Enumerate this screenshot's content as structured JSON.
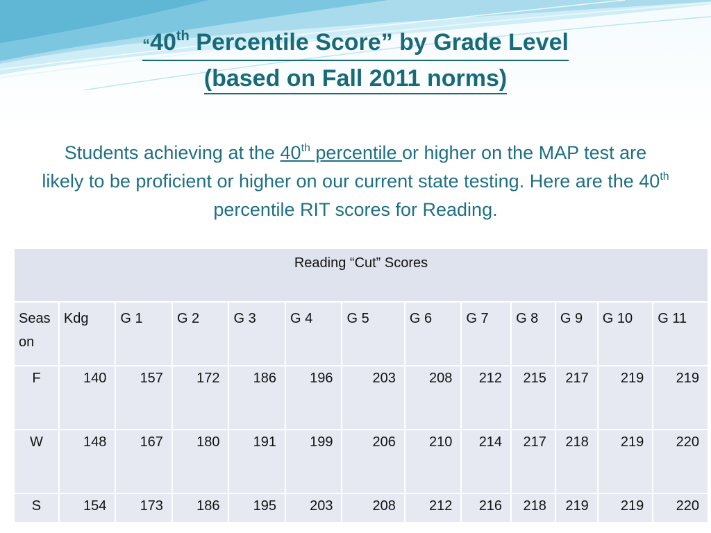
{
  "slide": {
    "title": {
      "open_quote": "“",
      "line1_num": "40",
      "line1_sup": "th",
      "line1_rest": " Percentile Score” by Grade Level",
      "line2": "(based on Fall 2011 norms)"
    },
    "subtitle": {
      "part1": "Students achieving at the ",
      "link_num": "40",
      "link_sup": "th",
      "link_rest": " percentile ",
      "part2": "or higher on the MAP test are likely to be proficient  or higher on our current state testing.  Here are the 40",
      "part2_sup": "th",
      "part3": " percentile RIT scores for Reading."
    }
  },
  "table": {
    "caption": "Reading “Cut” Scores",
    "headers": [
      "Season",
      "Kdg",
      "G 1",
      "G 2",
      "G 3",
      "G 4",
      "G 5",
      "G 6",
      "G 7",
      "G 8",
      "G 9",
      "G 10",
      "G 11"
    ],
    "header_season_top": "Seas",
    "header_season_bottom": "on",
    "rows": [
      {
        "season": "F",
        "values": [
          "140",
          "157",
          "172",
          "186",
          "196",
          "203",
          "208",
          "212",
          "215",
          "217",
          "219",
          "219"
        ]
      },
      {
        "season": "W",
        "values": [
          "148",
          "167",
          "180",
          "191",
          "199",
          "206",
          "210",
          "214",
          "217",
          "218",
          "219",
          "220"
        ]
      },
      {
        "season": "S",
        "values": [
          "154",
          "173",
          "186",
          "195",
          "203",
          "208",
          "212",
          "216",
          "218",
          "219",
          "219",
          "220"
        ]
      }
    ]
  },
  "colors": {
    "title": "#176a78",
    "body_text": "#1f6f82",
    "table_fill": "#e6e9f2",
    "wave_light": "#a9dbec",
    "wave_accent": "#5fb6d5"
  }
}
